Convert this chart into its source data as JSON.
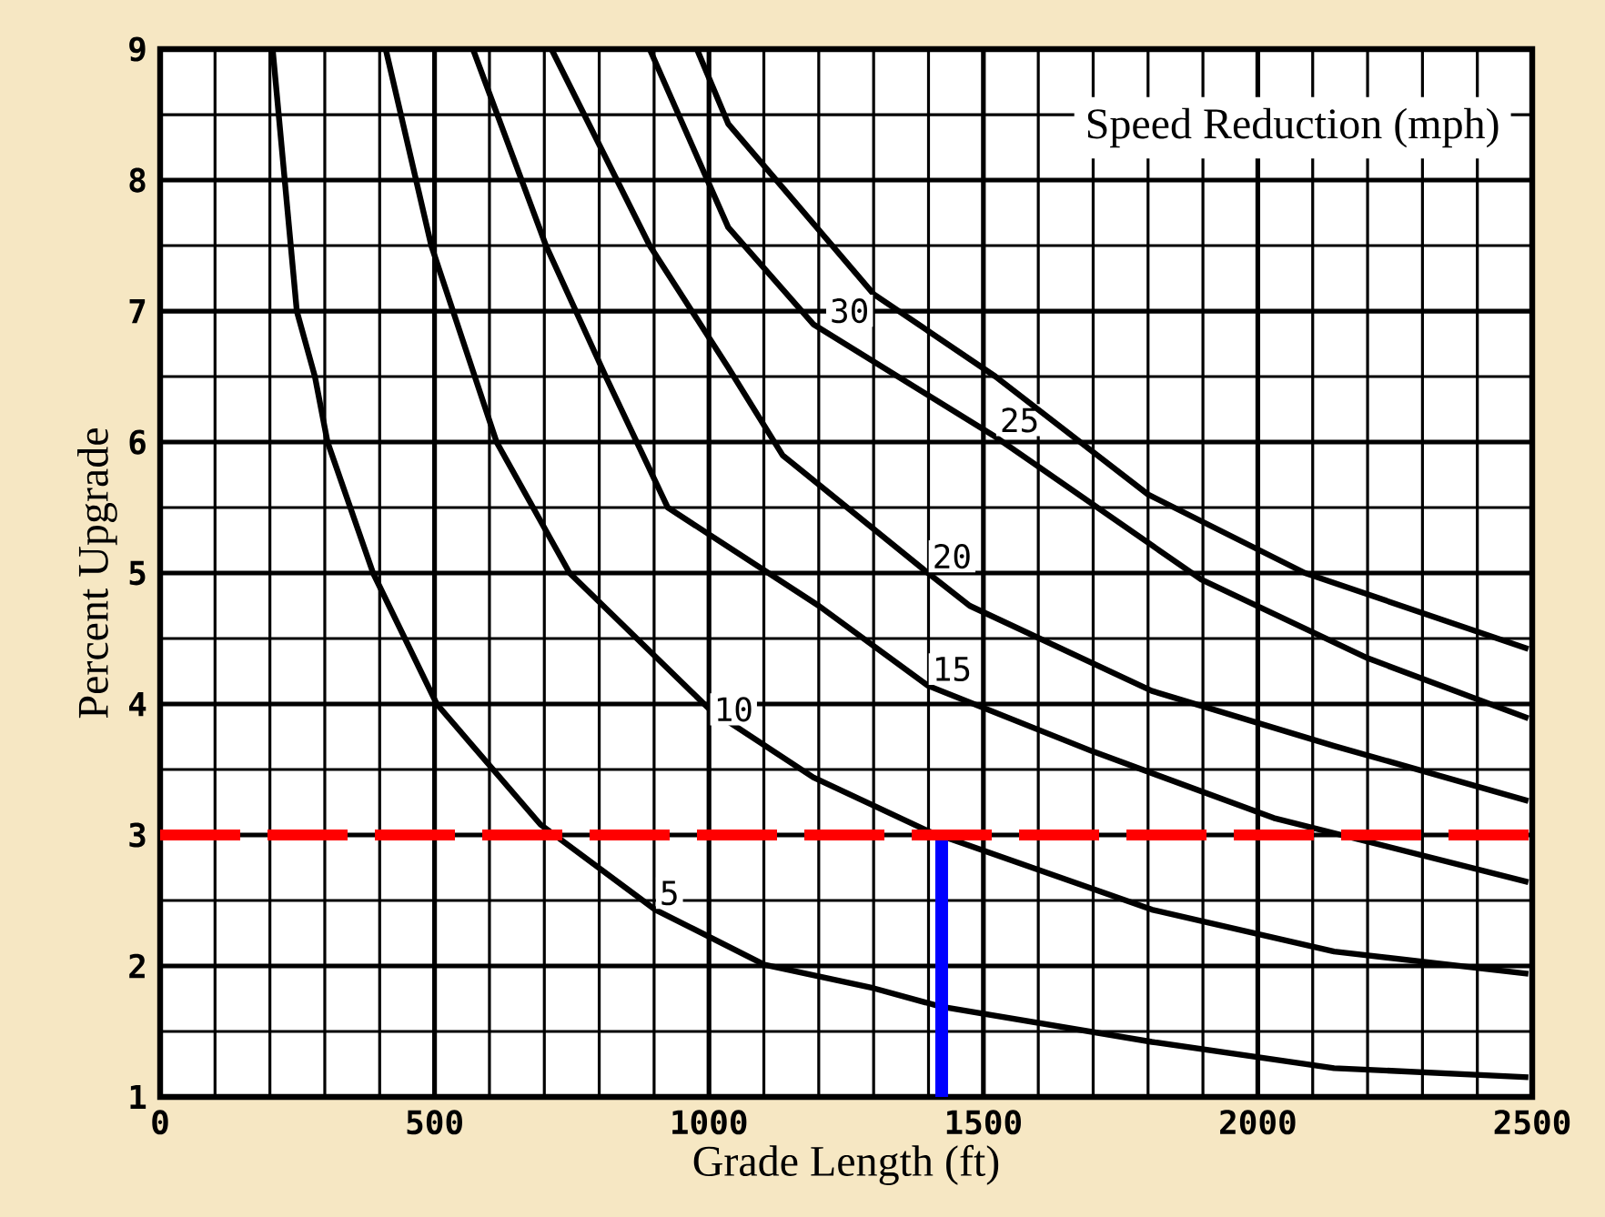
{
  "chart_data": {
    "type": "line",
    "xlabel": "Grade Length (ft)",
    "ylabel": "Percent Upgrade",
    "xlim": [
      0,
      2500
    ],
    "ylim": [
      1,
      9
    ],
    "xticks": [
      0,
      500,
      1000,
      1500,
      2000,
      2500
    ],
    "yticks": [
      1,
      2,
      3,
      4,
      5,
      6,
      7,
      8,
      9
    ],
    "grid": true,
    "marker": "none",
    "line_style": "solid",
    "series": [
      {
        "name": "5",
        "color": "#000000",
        "x": [
          205,
          249,
          282,
          305,
          388,
          504,
          693,
          902,
          1101,
          1300,
          1422,
          1807,
          2139,
          2493
        ],
        "values": [
          9,
          7,
          6.5,
          6,
          5,
          4,
          3.08,
          2.43,
          2.01,
          1.83,
          1.69,
          1.42,
          1.22,
          1.15
        ]
      },
      {
        "name": "10",
        "color": "#000000",
        "x": [
          411,
          494,
          613,
          746,
          1001,
          1190,
          1399,
          1807,
          2139,
          2493
        ],
        "values": [
          9,
          7.5,
          6,
          5,
          3.96,
          3.44,
          3.03,
          2.43,
          2.11,
          1.94
        ]
      },
      {
        "name": "15",
        "color": "#000000",
        "x": [
          570,
          703,
          812,
          925,
          1200,
          1399,
          1698,
          2029,
          2493
        ],
        "values": [
          9,
          7.5,
          6.5,
          5.5,
          4.75,
          4.14,
          3.64,
          3.13,
          2.64
        ]
      },
      {
        "name": "20",
        "color": "#000000",
        "x": [
          713,
          892,
          1035,
          1134,
          1399,
          1475,
          1807,
          2139,
          2493
        ],
        "values": [
          9,
          7.5,
          6.57,
          5.9,
          5,
          4.75,
          4.1,
          3.68,
          3.26
        ]
      },
      {
        "name": "25",
        "color": "#000000",
        "x": [
          892,
          1035,
          1190,
          1522,
          1897,
          2200,
          2493
        ],
        "values": [
          9,
          7.64,
          6.9,
          6.04,
          4.95,
          4.35,
          3.89
        ]
      },
      {
        "name": "30",
        "color": "#000000",
        "x": [
          978,
          1035,
          1300,
          1522,
          1800,
          2086,
          2493
        ],
        "values": [
          9,
          8.43,
          7.13,
          6.5,
          5.6,
          5,
          4.42
        ]
      },
      {
        "type": "line",
        "color": "#0000ff",
        "x": [
          1424,
          1424
        ],
        "values": [
          1,
          3
        ]
      }
    ],
    "ref_lines": [
      {
        "axis": "y",
        "value": 3,
        "color": "#ff0000",
        "line_style": "dashed"
      }
    ],
    "annotations": [
      "Speed Reduction (mph)"
    ]
  }
}
